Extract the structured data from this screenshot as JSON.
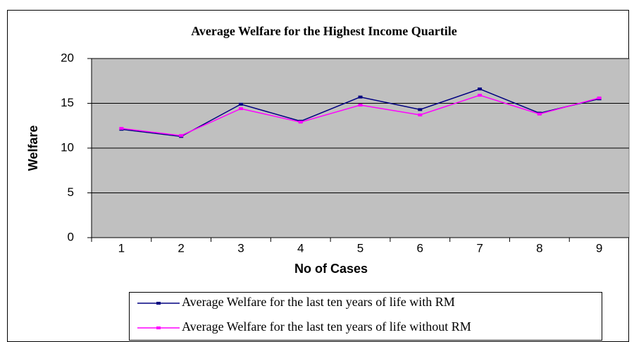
{
  "chart_data": {
    "type": "line",
    "title": "Average Welfare for the Highest Income Quartile",
    "xlabel": "No of Cases",
    "ylabel": "Welfare",
    "categories": [
      "1",
      "2",
      "3",
      "4",
      "5",
      "6",
      "7",
      "8",
      "9"
    ],
    "series": [
      {
        "name": "Average Welfare for the last ten years of life with RM",
        "color": "#000080",
        "values": [
          12.1,
          11.3,
          14.9,
          13.0,
          15.7,
          14.3,
          16.6,
          13.9,
          15.5
        ]
      },
      {
        "name": "Average Welfare for the last ten years of life without RM",
        "color": "#ff00ff",
        "values": [
          12.2,
          11.4,
          14.4,
          12.9,
          14.8,
          13.7,
          15.9,
          13.8,
          15.6
        ]
      }
    ],
    "ylim": [
      0,
      20
    ],
    "yticks": [
      0,
      5,
      10,
      15,
      20
    ],
    "grid": true,
    "legend": "bottom"
  }
}
